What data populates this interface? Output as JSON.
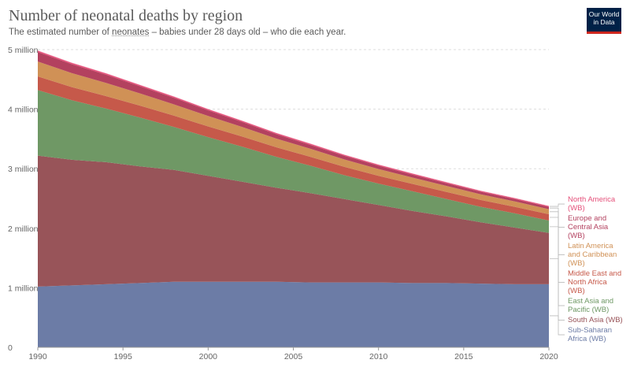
{
  "title": "Number of neonatal deaths by region",
  "subtitle": {
    "before": "The estimated number of ",
    "term": "neonates",
    "after": " – babies under 28 days old – who die each year."
  },
  "logo": {
    "line1": "Our World",
    "line2": "in Data"
  },
  "colors": {
    "background": "#ffffff",
    "grid": "#dddddd",
    "logo_bg": "#002147",
    "logo_accent": "#ce261e"
  },
  "chart_data": {
    "type": "area",
    "stacked": true,
    "title": "Number of neonatal deaths by region",
    "x": [
      1990,
      1992,
      1994,
      1996,
      1998,
      2000,
      2002,
      2004,
      2006,
      2008,
      2010,
      2012,
      2014,
      2016,
      2018,
      2020
    ],
    "xlim": [
      1990,
      2020
    ],
    "ylim": [
      0,
      5000000
    ],
    "x_ticks": [
      "1990",
      "1995",
      "2000",
      "2005",
      "2010",
      "2015",
      "2020"
    ],
    "y_ticks": [
      "0",
      "1 million",
      "2 million",
      "3 million",
      "4 million",
      "5 million"
    ],
    "grid": true,
    "legend_position": "right",
    "series": [
      {
        "name": "Sub-Saharan Africa (WB)",
        "label_lines": [
          "Sub-Saharan",
          "Africa (WB)"
        ],
        "color": "#6c7ca6",
        "values": [
          1020000,
          1040000,
          1060000,
          1080000,
          1100000,
          1100000,
          1100000,
          1100000,
          1090000,
          1090000,
          1090000,
          1080000,
          1080000,
          1070000,
          1060000,
          1060000
        ]
      },
      {
        "name": "South Asia (WB)",
        "label_lines": [
          "South Asia (WB)"
        ],
        "color": "#985459",
        "values": [
          2200000,
          2110000,
          2050000,
          1960000,
          1880000,
          1780000,
          1680000,
          1580000,
          1500000,
          1400000,
          1300000,
          1210000,
          1120000,
          1030000,
          950000,
          860000
        ]
      },
      {
        "name": "East Asia and Pacific (WB)",
        "label_lines": [
          "East Asia and",
          "Pacific (WB)"
        ],
        "color": "#6f9865",
        "values": [
          1100000,
          1000000,
          900000,
          820000,
          720000,
          650000,
          590000,
          520000,
          460000,
          400000,
          360000,
          330000,
          290000,
          260000,
          240000,
          210000
        ]
      },
      {
        "name": "Middle East and North Africa (WB)",
        "label_lines": [
          "Middle East and",
          "North Africa",
          "(WB)"
        ],
        "color": "#c6594a",
        "values": [
          230000,
          220000,
          210000,
          200000,
          190000,
          180000,
          170000,
          160000,
          150000,
          140000,
          130000,
          125000,
          120000,
          115000,
          110000,
          105000
        ]
      },
      {
        "name": "Latin America and Caribbean (WB)",
        "label_lines": [
          "Latin America",
          "and Caribbean",
          "(WB)"
        ],
        "color": "#d09156",
        "values": [
          250000,
          235000,
          220000,
          205000,
          190000,
          175000,
          160000,
          145000,
          135000,
          125000,
          115000,
          105000,
          100000,
          95000,
          90000,
          85000
        ]
      },
      {
        "name": "Europe and Central Asia (WB)",
        "label_lines": [
          "Europe and",
          "Central Asia",
          "(WB)"
        ],
        "color": "#b3415f",
        "values": [
          160000,
          150000,
          140000,
          120000,
          110000,
          95000,
          85000,
          75000,
          65000,
          60000,
          55000,
          50000,
          45000,
          42000,
          40000,
          38000
        ]
      },
      {
        "name": "North America (WB)",
        "label_lines": [
          "North America",
          "(WB)"
        ],
        "color": "#e5507a",
        "values": [
          25000,
          25000,
          24000,
          24000,
          23000,
          23000,
          22000,
          22000,
          22000,
          21000,
          20000,
          20000,
          19000,
          19000,
          18000,
          18000
        ]
      }
    ]
  }
}
